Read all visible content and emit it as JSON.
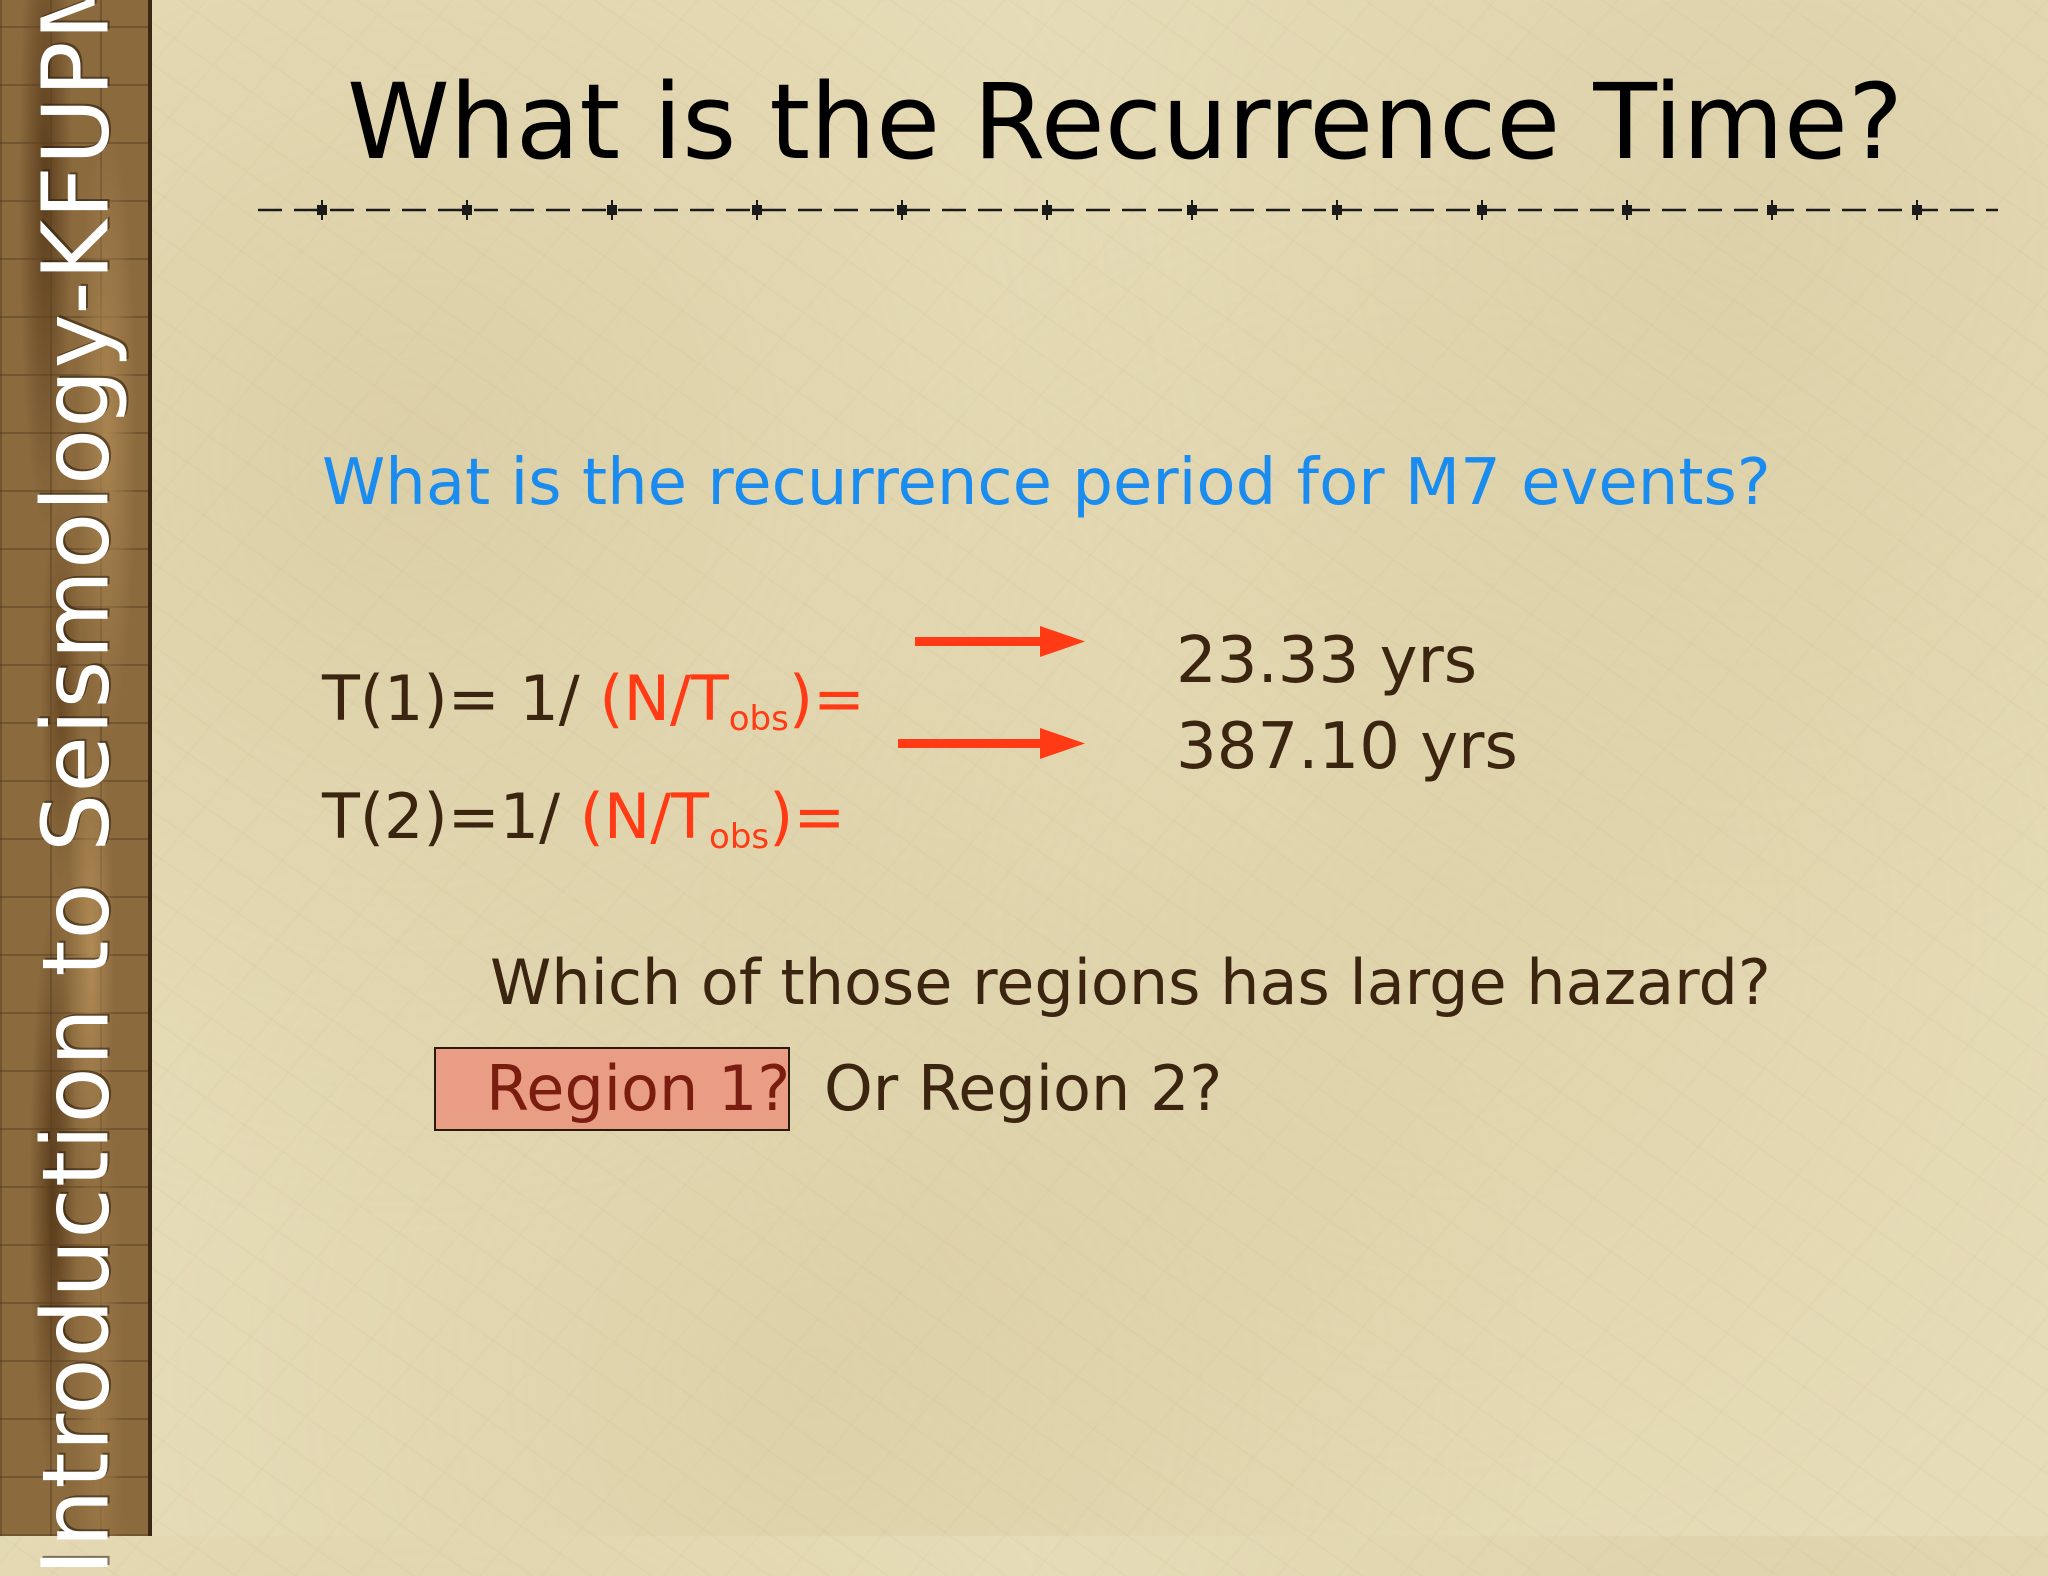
{
  "sidebar": {
    "label": "Introduction to Seismology-KFUPM"
  },
  "slide": {
    "title": "What is the Recurrence Time?",
    "question": "What is the recurrence period for M7 events?",
    "formula_1": {
      "prefix": "T(1)= 1/ ",
      "open": "(N/T",
      "subscript": "obs",
      "close": ")="
    },
    "formula_2": {
      "prefix": "T(2)=1/ ",
      "open": "(N/T",
      "subscript": "obs",
      "close": ")="
    },
    "results": [
      "23.33 yrs",
      "387.10 yrs"
    ],
    "hazard_question": "Which of those regions has large hazard?",
    "region_1": "Region 1?",
    "region_2": "Or Region 2?"
  },
  "colors": {
    "background": "#e6dcb7",
    "sidebar": "#8b6a3e",
    "question": "#1a8cf0",
    "accent_red": "#ff3a14",
    "body_text": "#3b2410",
    "highlight_box": "#e89d84"
  }
}
